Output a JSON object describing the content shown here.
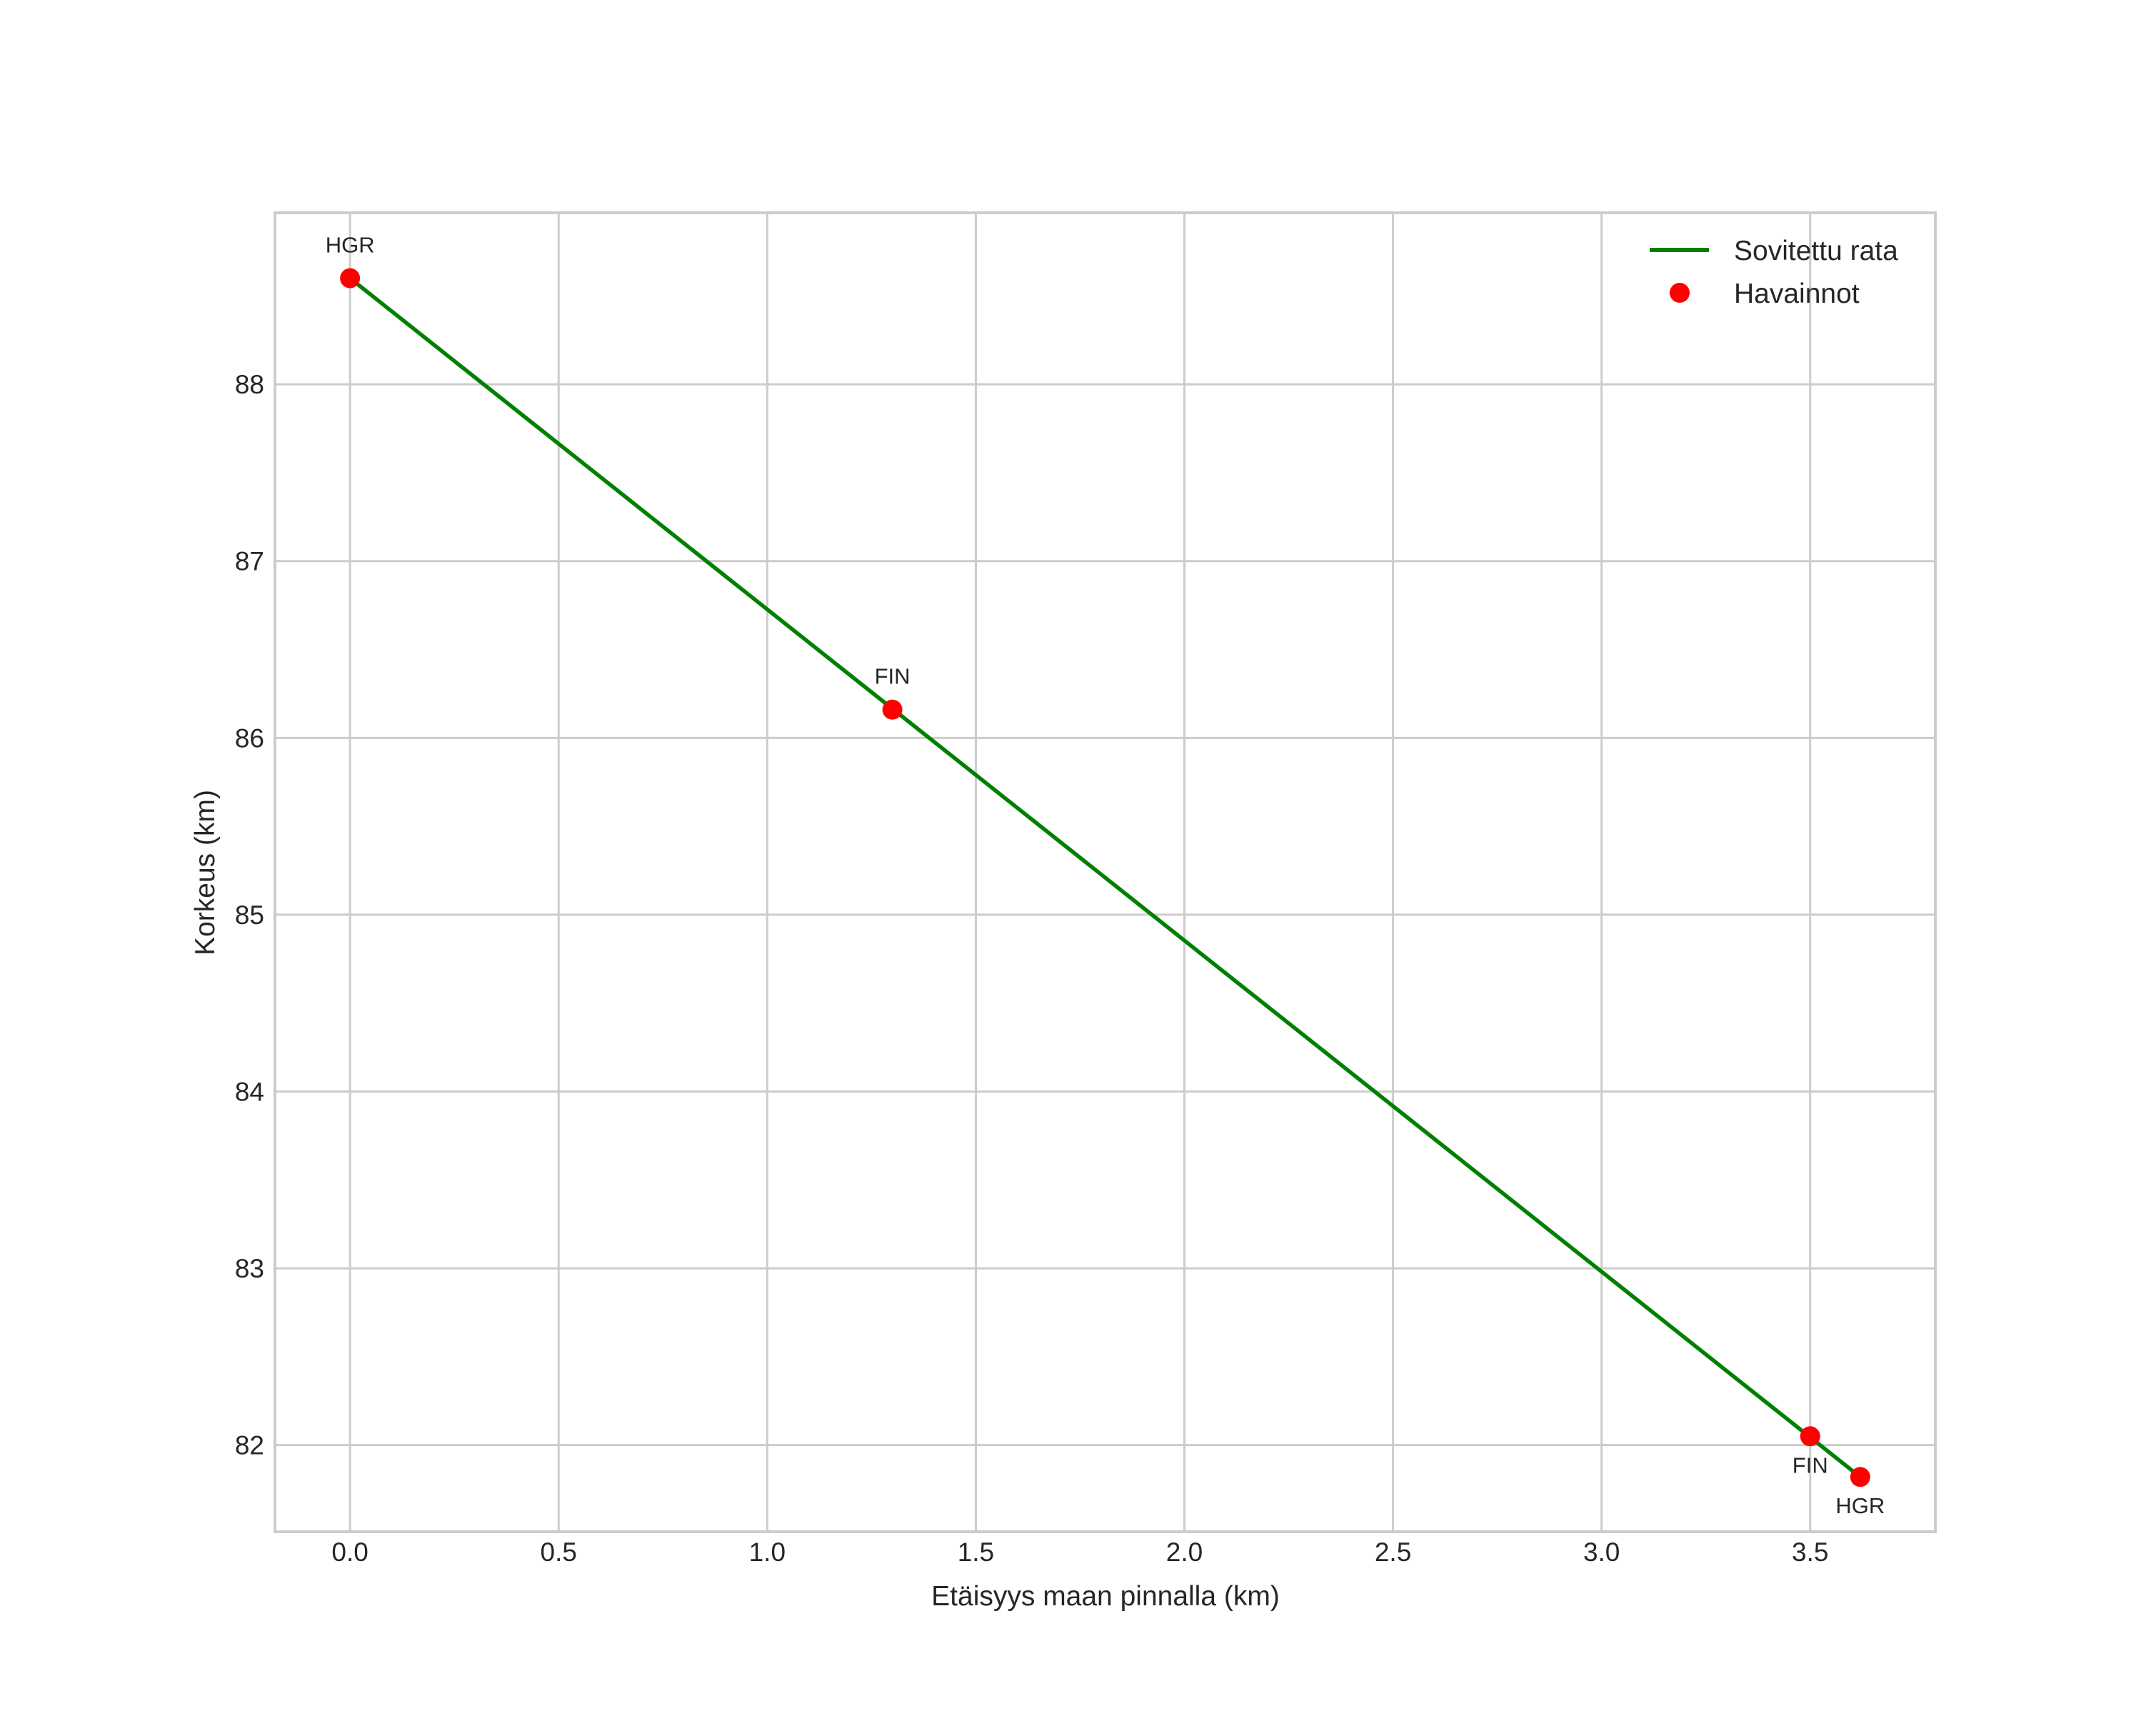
{
  "chart_data": {
    "type": "line",
    "title": "",
    "xlabel": "Etäisyys maan pinnalla (km)",
    "ylabel": "Korkeus (km)",
    "xlim": [
      -0.18,
      3.8
    ],
    "ylim": [
      81.51,
      88.97
    ],
    "grid": true,
    "legend_position": "upper right",
    "x_ticks": [
      0.0,
      0.5,
      1.0,
      1.5,
      2.0,
      2.5,
      3.0,
      3.5
    ],
    "x_tick_labels": [
      "0.0",
      "0.5",
      "1.0",
      "1.5",
      "2.0",
      "2.5",
      "3.0",
      "3.5"
    ],
    "y_ticks": [
      82,
      83,
      84,
      85,
      86,
      87,
      88
    ],
    "y_tick_labels": [
      "82",
      "83",
      "84",
      "85",
      "86",
      "87",
      "88"
    ],
    "series": [
      {
        "name": "Sovitettu rata",
        "type": "line",
        "color": "#008000",
        "x": [
          0.0,
          3.62
        ],
        "y": [
          88.6,
          81.82
        ]
      },
      {
        "name": "Havainnot",
        "type": "scatter",
        "color": "#ff0000",
        "x": [
          0.0,
          1.3,
          3.5,
          3.62
        ],
        "y": [
          88.6,
          86.16,
          82.05,
          81.82
        ],
        "labels": [
          "HGR",
          "FIN",
          "FIN",
          "HGR"
        ]
      }
    ],
    "annotations": [
      {
        "text": "HGR",
        "x": 0.0,
        "y": 88.6,
        "position": "above"
      },
      {
        "text": "FIN",
        "x": 1.3,
        "y": 86.16,
        "position": "above"
      },
      {
        "text": "FIN",
        "x": 3.5,
        "y": 82.05,
        "position": "below"
      },
      {
        "text": "HGR",
        "x": 3.62,
        "y": 81.82,
        "position": "below"
      }
    ]
  },
  "legend": {
    "items": [
      {
        "label": "Sovitettu rata",
        "marker": "line",
        "color": "#008000"
      },
      {
        "label": "Havainnot",
        "marker": "dot",
        "color": "#ff0000"
      }
    ]
  },
  "style": {
    "grid_color": "#cccccc",
    "frame_color": "#cccccc",
    "text_color": "#262626"
  }
}
